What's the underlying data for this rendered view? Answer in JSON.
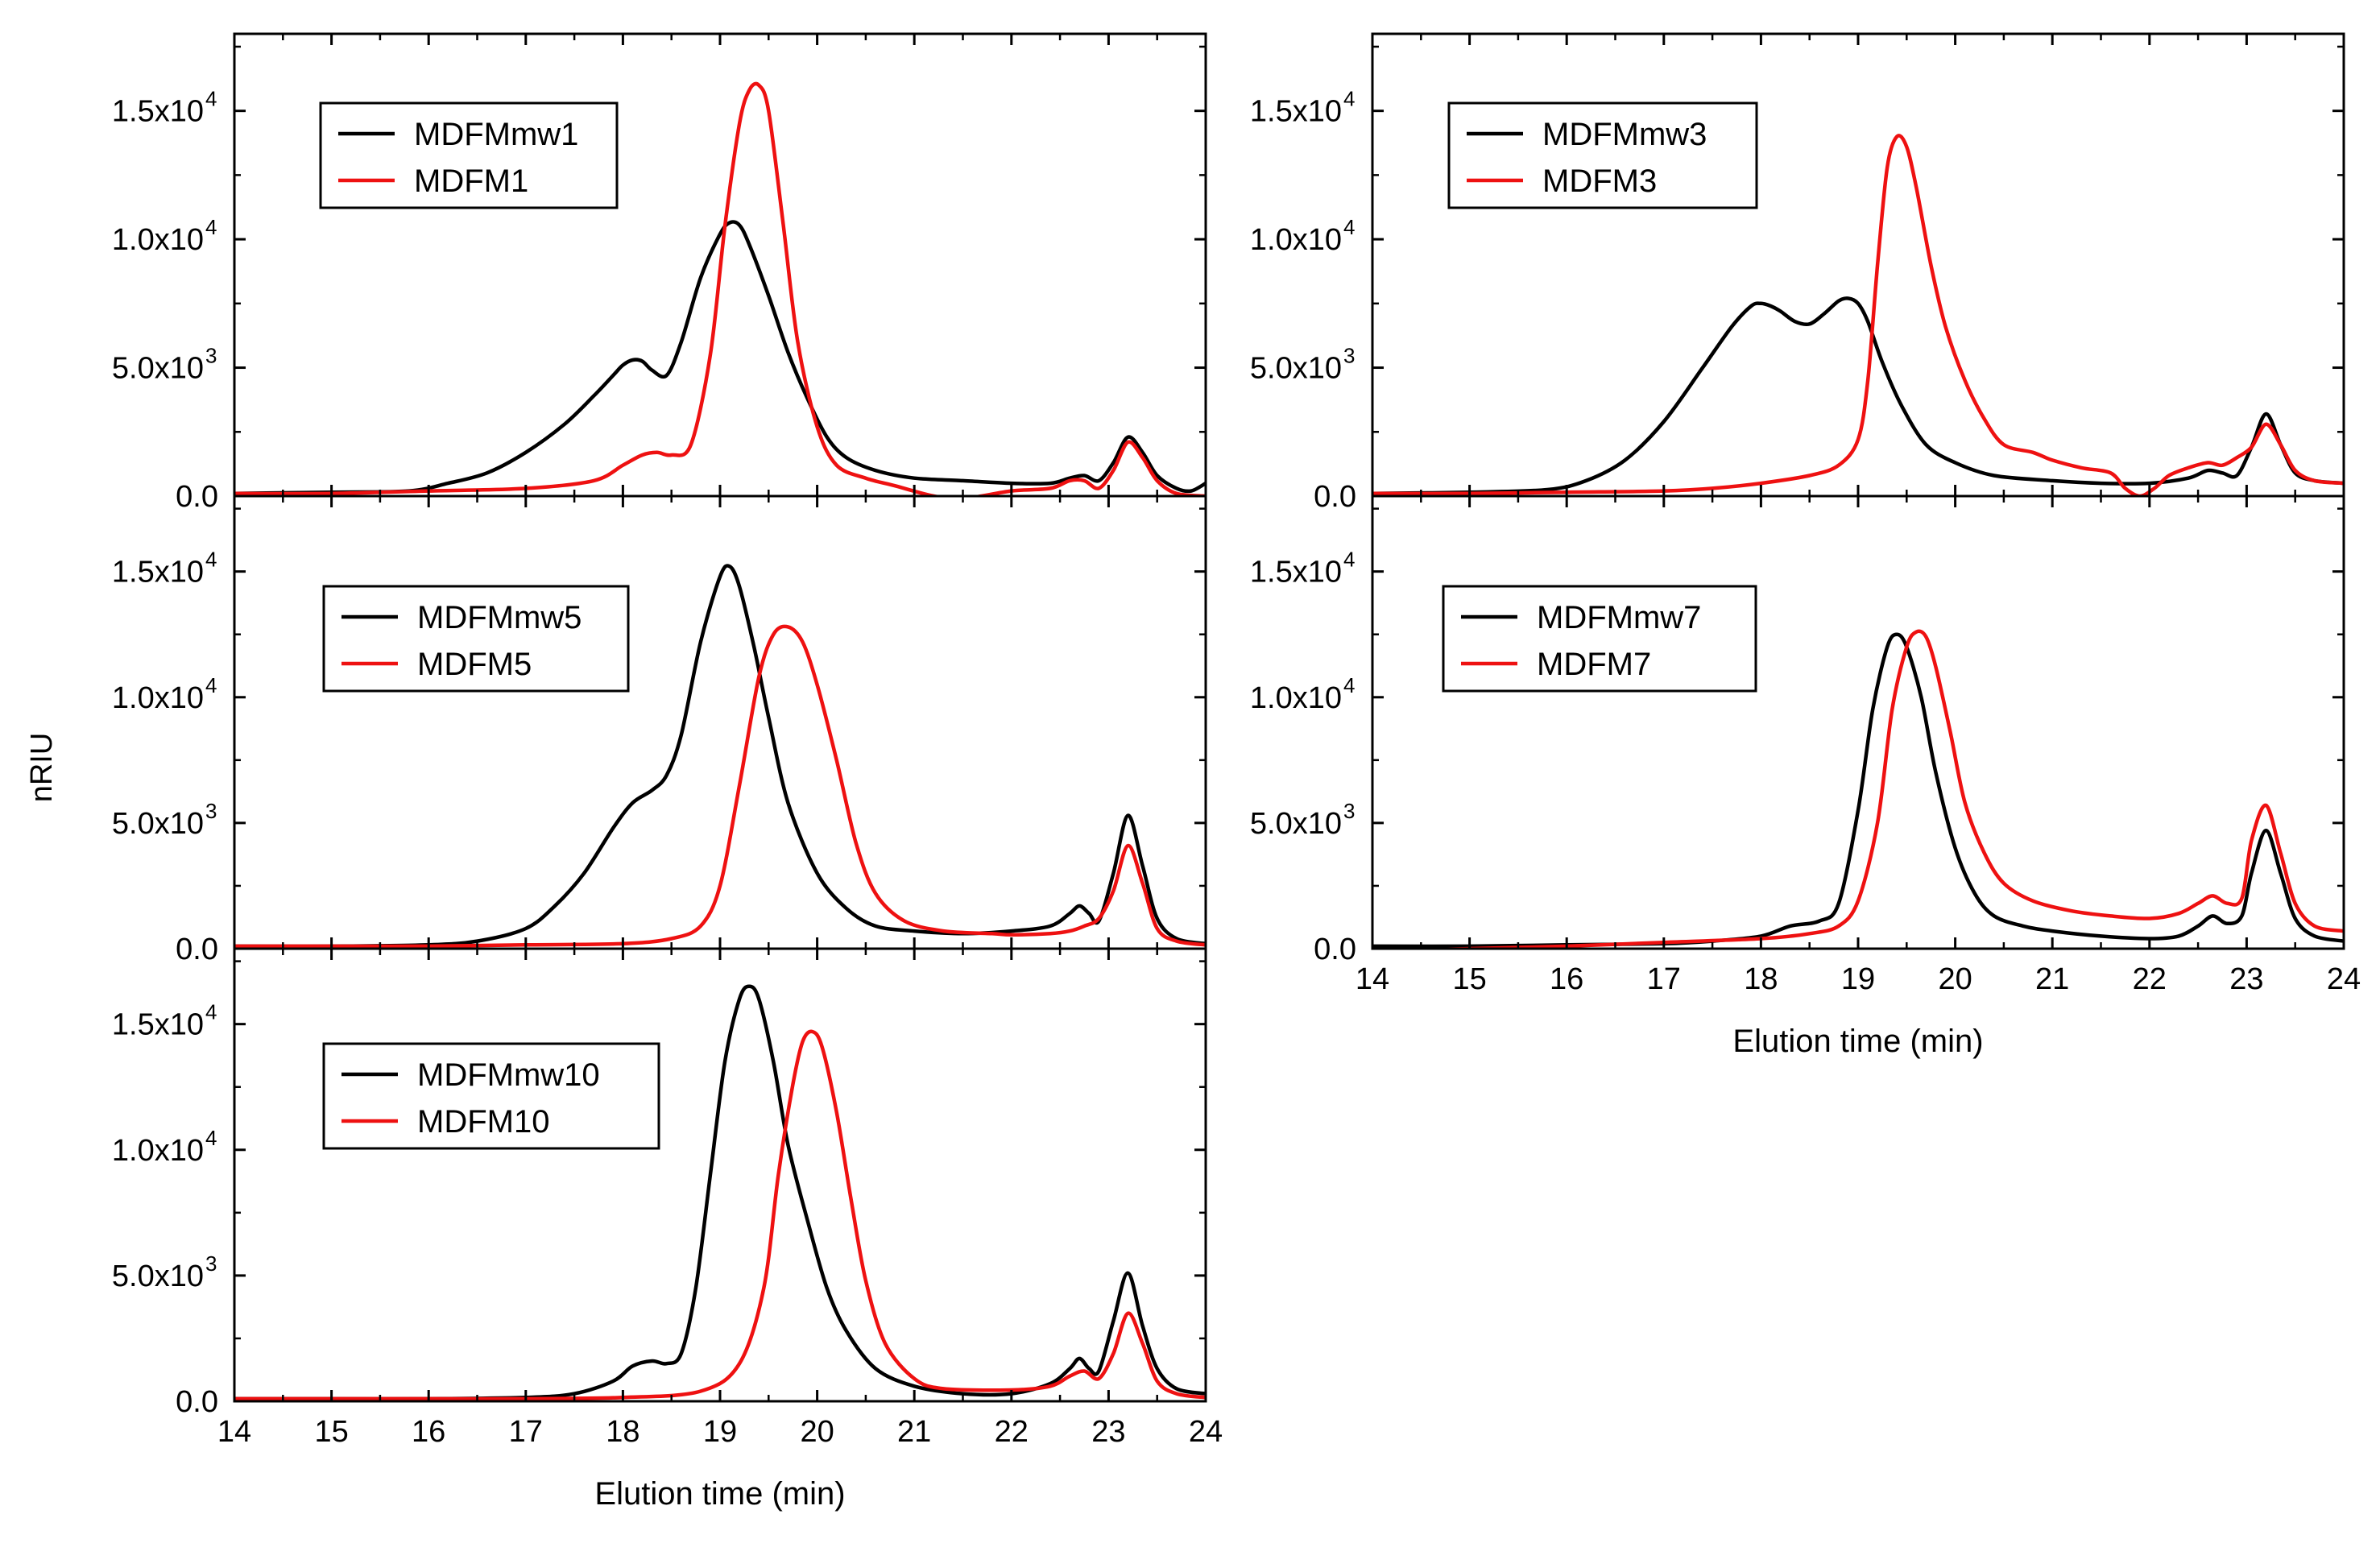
{
  "figure": {
    "ylabel": "nRIU",
    "xlabel": "Elution time (min)"
  },
  "chart_data": [
    {
      "type": "line",
      "panel": "top-left",
      "xlabel": "",
      "ylabel": "nRIU",
      "xlim": [
        14,
        24
      ],
      "ylim": [
        0,
        18000
      ],
      "xticks": [
        14,
        15,
        16,
        17,
        18,
        19,
        20,
        21,
        22,
        23,
        24
      ],
      "yticks": [
        {
          "mant": "0.0",
          "exp": ""
        },
        {
          "mant": "5.0x10",
          "exp": "3"
        },
        {
          "mant": "1.0x10",
          "exp": "4"
        },
        {
          "mant": "1.5x10",
          "exp": "4"
        }
      ],
      "ytick_values": [
        0,
        5000,
        10000,
        15000
      ],
      "legend_position": "top-left",
      "series": [
        {
          "name": "MDFMmw1",
          "color": "#000000",
          "x": [
            14,
            15,
            15.8,
            16.2,
            16.6,
            17,
            17.4,
            17.7,
            17.9,
            18,
            18.1,
            18.2,
            18.3,
            18.45,
            18.6,
            18.8,
            19,
            19.1,
            19.2,
            19.3,
            19.5,
            19.7,
            19.9,
            20.1,
            20.3,
            20.6,
            21,
            21.5,
            22,
            22.4,
            22.6,
            22.75,
            22.9,
            23.05,
            23.2,
            23.35,
            23.5,
            23.7,
            23.85,
            24
          ],
          "y": [
            100,
            150,
            200,
            500,
            900,
            1700,
            2800,
            3900,
            4700,
            5100,
            5300,
            5250,
            4900,
            4700,
            6000,
            8500,
            10200,
            10650,
            10550,
            9800,
            7800,
            5600,
            3800,
            2300,
            1500,
            1000,
            700,
            600,
            500,
            500,
            700,
            800,
            600,
            1300,
            2300,
            1700,
            800,
            300,
            200,
            500
          ]
        },
        {
          "name": "MDFM1",
          "color": "#ee1111",
          "x": [
            14,
            15,
            16,
            17,
            17.7,
            18,
            18.2,
            18.35,
            18.5,
            18.7,
            18.9,
            19.05,
            19.2,
            19.3,
            19.4,
            19.5,
            19.65,
            19.8,
            20,
            20.2,
            20.5,
            20.8,
            21.2,
            21.5,
            22,
            22.4,
            22.6,
            22.75,
            22.9,
            23.05,
            23.2,
            23.35,
            23.5,
            23.7,
            24
          ],
          "y": [
            100,
            100,
            200,
            300,
            600,
            1200,
            1600,
            1700,
            1600,
            2000,
            5500,
            10500,
            14500,
            15800,
            16000,
            15000,
            10600,
            6000,
            2700,
            1200,
            700,
            400,
            0,
            -100,
            200,
            300,
            600,
            600,
            300,
            1000,
            2100,
            1500,
            600,
            100,
            0
          ]
        }
      ]
    },
    {
      "type": "line",
      "panel": "middle-left",
      "xlabel": "",
      "ylabel": "nRIU",
      "xlim": [
        14,
        24
      ],
      "ylim": [
        0,
        18000
      ],
      "xticks": [
        14,
        15,
        16,
        17,
        18,
        19,
        20,
        21,
        22,
        23,
        24
      ],
      "yticks": [
        {
          "mant": "0.0",
          "exp": ""
        },
        {
          "mant": "5.0x10",
          "exp": "3"
        },
        {
          "mant": "1.0x10",
          "exp": "4"
        },
        {
          "mant": "1.5x10",
          "exp": "4"
        }
      ],
      "ytick_values": [
        0,
        5000,
        10000,
        15000
      ],
      "legend_position": "top-left",
      "series": [
        {
          "name": "MDFMmw5",
          "color": "#000000",
          "x": [
            14,
            15,
            16,
            16.5,
            17,
            17.3,
            17.6,
            17.9,
            18.1,
            18.3,
            18.45,
            18.6,
            18.8,
            19,
            19.1,
            19.2,
            19.35,
            19.5,
            19.7,
            20,
            20.3,
            20.6,
            21,
            21.5,
            22,
            22.4,
            22.6,
            22.7,
            22.8,
            22.9,
            23.05,
            23.2,
            23.35,
            23.5,
            23.7,
            24
          ],
          "y": [
            100,
            100,
            150,
            300,
            800,
            1700,
            3000,
            4800,
            5800,
            6300,
            6900,
            8500,
            12200,
            14800,
            15200,
            14400,
            12000,
            9200,
            5800,
            3000,
            1600,
            900,
            700,
            600,
            700,
            900,
            1400,
            1700,
            1400,
            1100,
            3000,
            5300,
            3300,
            1200,
            400,
            200
          ]
        },
        {
          "name": "MDFM5",
          "color": "#ee1111",
          "x": [
            14,
            15,
            16,
            17,
            18,
            18.5,
            18.8,
            19,
            19.2,
            19.4,
            19.55,
            19.7,
            19.85,
            20,
            20.2,
            20.4,
            20.6,
            20.9,
            21.3,
            21.8,
            22,
            22.4,
            22.6,
            22.75,
            22.9,
            23.05,
            23.2,
            23.35,
            23.5,
            23.7,
            24
          ],
          "y": [
            100,
            100,
            100,
            150,
            200,
            400,
            900,
            2500,
            6500,
            10800,
            12500,
            12800,
            12200,
            10500,
            7500,
            4200,
            2200,
            1100,
            700,
            600,
            550,
            600,
            700,
            900,
            1200,
            2300,
            4100,
            2600,
            800,
            300,
            150
          ]
        }
      ]
    },
    {
      "type": "line",
      "panel": "bottom-left",
      "xlabel": "Elution time (min)",
      "ylabel": "nRIU",
      "xlim": [
        14,
        24
      ],
      "ylim": [
        0,
        18000
      ],
      "xticks": [
        14,
        15,
        16,
        17,
        18,
        19,
        20,
        21,
        22,
        23,
        24
      ],
      "yticks": [
        {
          "mant": "0.0",
          "exp": ""
        },
        {
          "mant": "5.0x10",
          "exp": "3"
        },
        {
          "mant": "1.0x10",
          "exp": "4"
        },
        {
          "mant": "1.5x10",
          "exp": "4"
        }
      ],
      "ytick_values": [
        0,
        5000,
        10000,
        15000
      ],
      "legend_position": "top-left",
      "series": [
        {
          "name": "MDFMmw10",
          "color": "#000000",
          "x": [
            14,
            15,
            16,
            17,
            17.5,
            17.9,
            18.1,
            18.3,
            18.45,
            18.6,
            18.75,
            18.9,
            19.05,
            19.2,
            19.3,
            19.4,
            19.55,
            19.7,
            19.9,
            20.1,
            20.3,
            20.6,
            21,
            21.5,
            22,
            22.4,
            22.6,
            22.7,
            22.8,
            22.9,
            23.05,
            23.2,
            23.35,
            23.5,
            23.7,
            24
          ],
          "y": [
            100,
            100,
            100,
            150,
            300,
            800,
            1400,
            1600,
            1500,
            1900,
            4500,
            9000,
            13500,
            16000,
            16500,
            16000,
            13500,
            10200,
            7200,
            4500,
            2800,
            1300,
            600,
            300,
            300,
            700,
            1300,
            1700,
            1300,
            1200,
            3200,
            5100,
            3000,
            1300,
            500,
            300
          ]
        },
        {
          "name": "MDFM10",
          "color": "#ee1111",
          "x": [
            14,
            15,
            16,
            17,
            18,
            18.8,
            19.2,
            19.45,
            19.6,
            19.75,
            19.85,
            19.95,
            20.05,
            20.2,
            20.35,
            20.5,
            20.7,
            21,
            21.3,
            22,
            22.4,
            22.6,
            22.75,
            22.9,
            23.05,
            23.2,
            23.35,
            23.5,
            23.7,
            24
          ],
          "y": [
            100,
            100,
            100,
            100,
            150,
            400,
            1500,
            4500,
            9000,
            12600,
            14300,
            14700,
            14100,
            11500,
            8000,
            4800,
            2300,
            900,
            500,
            450,
            600,
            1000,
            1200,
            900,
            1900,
            3500,
            2300,
            800,
            300,
            150
          ]
        }
      ]
    },
    {
      "type": "line",
      "panel": "top-right",
      "xlabel": "",
      "ylabel": "",
      "xlim": [
        14,
        24
      ],
      "ylim": [
        0,
        18000
      ],
      "xticks": [
        14,
        15,
        16,
        17,
        18,
        19,
        20,
        21,
        22,
        23,
        24
      ],
      "yticks": [
        {
          "mant": "0.0",
          "exp": ""
        },
        {
          "mant": "5.0x10",
          "exp": "3"
        },
        {
          "mant": "1.0x10",
          "exp": "4"
        },
        {
          "mant": "1.5x10",
          "exp": "4"
        }
      ],
      "ytick_values": [
        0,
        5000,
        10000,
        15000
      ],
      "legend_position": "top-left",
      "series": [
        {
          "name": "MDFMmw3",
          "color": "#000000",
          "x": [
            14,
            15,
            15.8,
            16.2,
            16.6,
            17,
            17.4,
            17.7,
            17.9,
            18,
            18.1,
            18.2,
            18.35,
            18.5,
            18.65,
            18.8,
            18.9,
            19,
            19.1,
            19.25,
            19.45,
            19.7,
            20,
            20.4,
            21,
            21.5,
            22,
            22.4,
            22.6,
            22.75,
            22.9,
            23.05,
            23.2,
            23.35,
            23.5,
            23.7,
            24
          ],
          "y": [
            100,
            150,
            250,
            600,
            1400,
            2900,
            5000,
            6600,
            7400,
            7500,
            7400,
            7200,
            6800,
            6700,
            7100,
            7600,
            7700,
            7500,
            6800,
            5200,
            3500,
            2000,
            1300,
            800,
            600,
            500,
            500,
            700,
            1000,
            900,
            800,
            1900,
            3200,
            2000,
            900,
            600,
            500
          ]
        },
        {
          "name": "MDFM3",
          "color": "#ee1111",
          "x": [
            14,
            15,
            16,
            17,
            17.5,
            18,
            18.5,
            18.8,
            19,
            19.1,
            19.2,
            19.3,
            19.4,
            19.5,
            19.6,
            19.75,
            19.9,
            20.1,
            20.3,
            20.5,
            20.8,
            21,
            21.3,
            21.6,
            21.75,
            21.9,
            22.05,
            22.2,
            22.4,
            22.6,
            22.75,
            22.9,
            23.05,
            23.2,
            23.35,
            23.5,
            23.7,
            24
          ],
          "y": [
            100,
            100,
            150,
            200,
            300,
            500,
            800,
            1200,
            2200,
            4500,
            9000,
            12800,
            14000,
            13600,
            12000,
            9000,
            6600,
            4500,
            3000,
            2000,
            1700,
            1400,
            1100,
            900,
            300,
            0,
            300,
            800,
            1100,
            1300,
            1200,
            1500,
            1900,
            2800,
            2000,
            1000,
            600,
            500
          ]
        }
      ]
    },
    {
      "type": "line",
      "panel": "middle-right",
      "xlabel": "Elution time (min)",
      "ylabel": "",
      "xlim": [
        14,
        24
      ],
      "ylim": [
        0,
        18000
      ],
      "xticks": [
        14,
        15,
        16,
        17,
        18,
        19,
        20,
        21,
        22,
        23,
        24
      ],
      "yticks": [
        {
          "mant": "0.0",
          "exp": ""
        },
        {
          "mant": "5.0x10",
          "exp": "3"
        },
        {
          "mant": "1.0x10",
          "exp": "4"
        },
        {
          "mant": "1.5x10",
          "exp": "4"
        }
      ],
      "ytick_values": [
        0,
        5000,
        10000,
        15000
      ],
      "legend_position": "top-left",
      "series": [
        {
          "name": "MDFMmw7",
          "color": "#000000",
          "x": [
            14,
            15,
            16,
            17,
            17.5,
            18,
            18.3,
            18.6,
            18.8,
            19,
            19.15,
            19.3,
            19.4,
            19.5,
            19.65,
            19.8,
            20,
            20.2,
            20.4,
            20.7,
            21,
            21.5,
            22,
            22.3,
            22.5,
            22.65,
            22.8,
            22.95,
            23.05,
            23.2,
            23.35,
            23.5,
            23.7,
            24
          ],
          "y": [
            100,
            100,
            150,
            200,
            300,
            500,
            900,
            1100,
            1800,
            5500,
            9500,
            12000,
            12500,
            12000,
            10000,
            7000,
            4000,
            2200,
            1300,
            900,
            700,
            500,
            400,
            500,
            900,
            1300,
            1000,
            1300,
            3000,
            4700,
            3000,
            1200,
            500,
            300
          ]
        },
        {
          "name": "MDFM7",
          "color": "#ee1111",
          "x": [
            14,
            15,
            16,
            17,
            18,
            18.5,
            18.8,
            19,
            19.2,
            19.35,
            19.5,
            19.6,
            19.7,
            19.8,
            19.95,
            20.1,
            20.3,
            20.5,
            20.8,
            21.2,
            21.6,
            22,
            22.3,
            22.5,
            22.65,
            22.8,
            22.95,
            23.05,
            23.2,
            23.35,
            23.5,
            23.7,
            24
          ],
          "y": [
            -100,
            0,
            100,
            250,
            400,
            600,
            900,
            1900,
            5000,
            9500,
            12000,
            12600,
            12400,
            11200,
            8600,
            5800,
            3800,
            2600,
            1900,
            1500,
            1300,
            1200,
            1400,
            1800,
            2100,
            1800,
            2000,
            4300,
            5700,
            3800,
            1800,
            900,
            700
          ]
        }
      ]
    }
  ]
}
